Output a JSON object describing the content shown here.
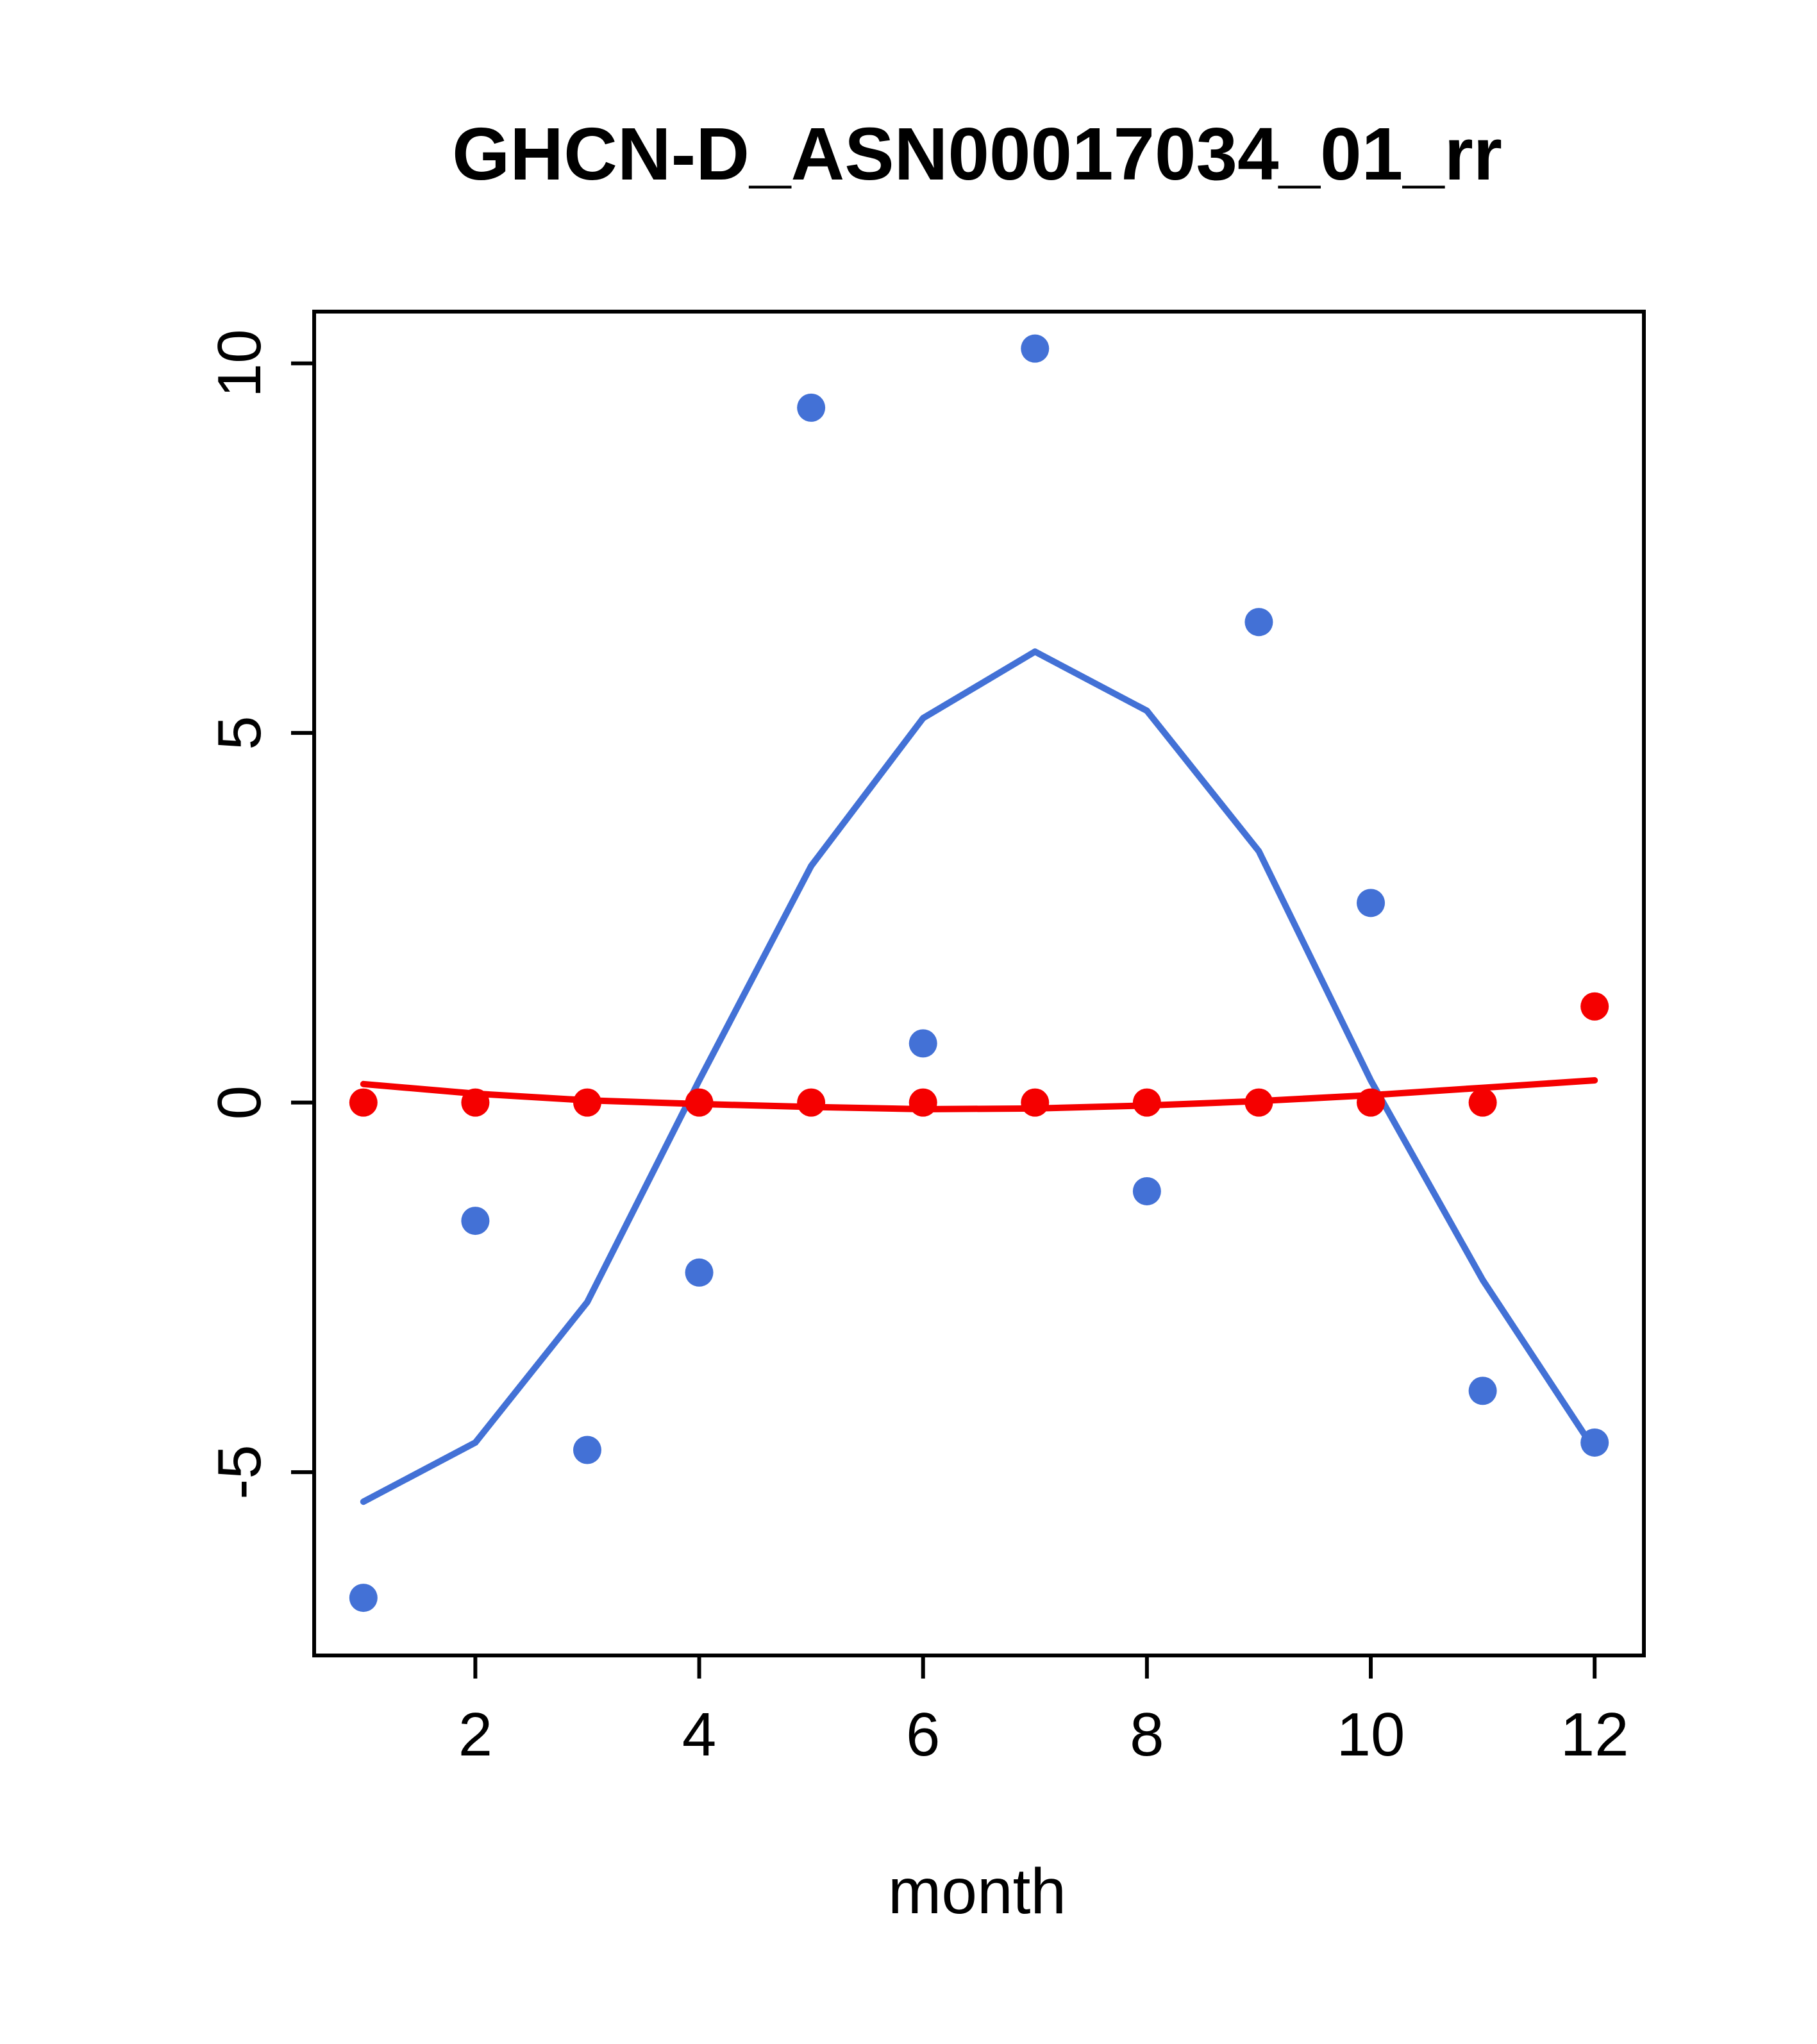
{
  "chart_data": {
    "type": "line",
    "title": "GHCN-D_ASN00017034_01_rr",
    "xlabel": "month",
    "ylabel": "",
    "x": [
      1,
      2,
      3,
      4,
      5,
      6,
      7,
      8,
      9,
      10,
      11,
      12
    ],
    "xticks": [
      2,
      4,
      6,
      8,
      10,
      12
    ],
    "yticks": [
      -5,
      0,
      5,
      10
    ],
    "xlim": [
      0.56,
      12.44
    ],
    "ylim": [
      -7.48,
      10.7
    ],
    "grid": false,
    "legend": "none",
    "colors": {
      "blue": "#4371d6",
      "red": "#f50000",
      "axis": "#000000",
      "background": "#ffffff"
    },
    "series": [
      {
        "name": "seasonal-cycle-blue-line",
        "type": "line",
        "color": "#4371d6",
        "values": [
          -5.4,
          -4.6,
          -2.7,
          0.3,
          3.2,
          5.2,
          6.1,
          5.3,
          3.4,
          0.3,
          -2.4,
          -4.7
        ]
      },
      {
        "name": "smooth-red-line",
        "type": "line",
        "color": "#f50000",
        "values": [
          0.25,
          0.12,
          0.03,
          -0.02,
          -0.06,
          -0.09,
          -0.08,
          -0.04,
          0.02,
          0.1,
          0.2,
          0.3
        ]
      },
      {
        "name": "monthly-anomaly-blue-points",
        "type": "scatter",
        "color": "#4371d6",
        "values": [
          -6.7,
          -1.6,
          -4.7,
          -2.3,
          9.4,
          0.8,
          10.2,
          -1.2,
          6.5,
          2.7,
          -3.9,
          -4.6
        ]
      },
      {
        "name": "monthly-reference-red-points",
        "type": "scatter",
        "color": "#f50000",
        "values": [
          0,
          0,
          0,
          0,
          0,
          0,
          0,
          0,
          0,
          0,
          0,
          1.3
        ]
      }
    ]
  }
}
